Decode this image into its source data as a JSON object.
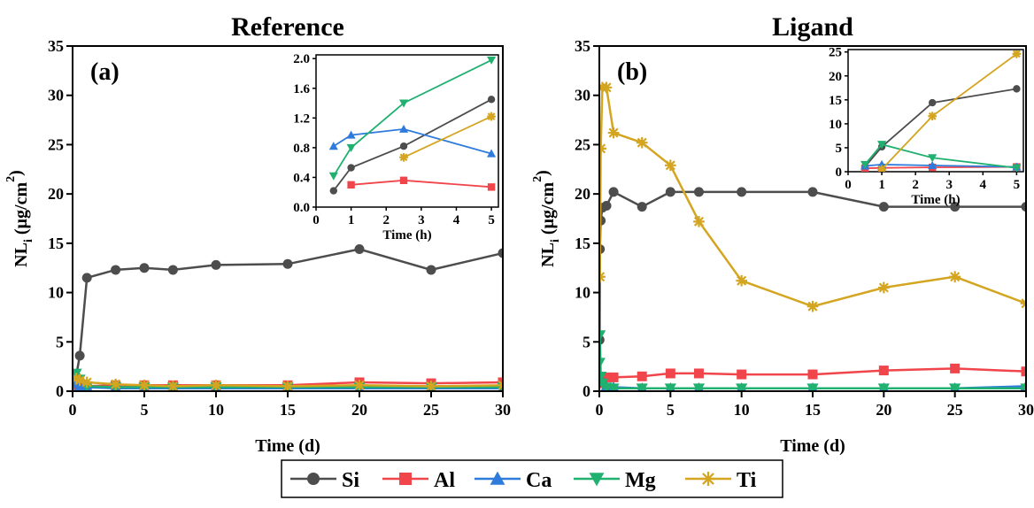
{
  "chart_data": [
    {
      "type": "line",
      "panel": "(a)",
      "title": "Reference",
      "xlabel": "Time (d)",
      "ylabel": "NL",
      "ylabel_sub": "i",
      "ylabel_unit_pre": " (µg/cm",
      "ylabel_unit_sup": "2",
      "ylabel_unit_post": ")",
      "xlim": [
        0,
        30
      ],
      "ylim": [
        0,
        35
      ],
      "xticks": [
        0,
        5,
        10,
        15,
        20,
        25,
        30
      ],
      "yticks": [
        0,
        5,
        10,
        15,
        20,
        25,
        30,
        35
      ],
      "series": [
        {
          "name": "Si",
          "x": [
            0.25,
            0.5,
            1,
            3,
            5,
            7,
            10,
            15,
            20,
            25,
            30
          ],
          "values": [
            1.5,
            3.6,
            11.5,
            12.3,
            12.5,
            12.3,
            12.8,
            12.9,
            14.4,
            12.3,
            14.0
          ]
        },
        {
          "name": "Al",
          "x": [
            0.25,
            0.5,
            1,
            3,
            5,
            7,
            10,
            15,
            20,
            25,
            30
          ],
          "values": [
            0.3,
            0.4,
            0.5,
            0.6,
            0.6,
            0.6,
            0.6,
            0.6,
            0.9,
            0.8,
            0.9
          ]
        },
        {
          "name": "Ca",
          "x": [
            0.25,
            0.5,
            1,
            3,
            5,
            7,
            10,
            15,
            20,
            25,
            30
          ],
          "values": [
            0.8,
            0.5,
            0.4,
            0.3,
            0.3,
            0.3,
            0.3,
            0.3,
            0.3,
            0.3,
            0.3
          ]
        },
        {
          "name": "Mg",
          "x": [
            0.25,
            0.5,
            1,
            3,
            5,
            7,
            10,
            15,
            20,
            25,
            30
          ],
          "values": [
            1.8,
            1.2,
            0.5,
            0.4,
            0.4,
            0.4,
            0.4,
            0.4,
            0.4,
            0.4,
            0.4
          ]
        },
        {
          "name": "Ti",
          "x": [
            0.25,
            0.5,
            1,
            3,
            5,
            7,
            10,
            15,
            20,
            25,
            30
          ],
          "values": [
            1.3,
            1.1,
            0.9,
            0.7,
            0.6,
            0.5,
            0.6,
            0.5,
            0.6,
            0.5,
            0.6
          ]
        }
      ],
      "inset": {
        "xlabel": "Time (h)",
        "xlim": [
          0,
          5.2
        ],
        "ylim": [
          0,
          2.05
        ],
        "xticks": [
          0,
          1,
          2,
          3,
          4,
          5
        ],
        "yticks": [
          0.0,
          0.4,
          0.8,
          1.2,
          1.6,
          2.0
        ],
        "yticklabels": [
          "0.0",
          "0.4",
          "0.8",
          "1.2",
          "1.6",
          "2.0"
        ],
        "series": [
          {
            "name": "Si",
            "x": [
              0.5,
              1,
              2.5,
              5
            ],
            "values": [
              0.22,
              0.53,
              0.82,
              1.45
            ]
          },
          {
            "name": "Al",
            "x": [
              1,
              2.5,
              5
            ],
            "values": [
              0.3,
              0.36,
              0.27
            ]
          },
          {
            "name": "Ca",
            "x": [
              0.5,
              1,
              2.5,
              5
            ],
            "values": [
              0.82,
              0.97,
              1.05,
              0.72
            ]
          },
          {
            "name": "Mg",
            "x": [
              0.5,
              1,
              2.5,
              5
            ],
            "values": [
              0.42,
              0.8,
              1.4,
              1.98
            ]
          },
          {
            "name": "Ti",
            "x": [
              2.5,
              5
            ],
            "values": [
              0.67,
              1.22
            ]
          }
        ]
      }
    },
    {
      "type": "line",
      "panel": "(b)",
      "title": "Ligand",
      "xlabel": "Time (d)",
      "ylabel": "NL",
      "ylabel_sub": "i",
      "ylabel_unit_pre": " (µg/cm",
      "ylabel_unit_sup": "2",
      "ylabel_unit_post": ")",
      "xlim": [
        0,
        30
      ],
      "ylim": [
        0,
        35
      ],
      "xticks": [
        0,
        5,
        10,
        15,
        20,
        25,
        30
      ],
      "yticks": [
        0,
        5,
        10,
        15,
        20,
        25,
        30,
        35
      ],
      "series": [
        {
          "name": "Si",
          "x": [
            0.02,
            0.04,
            0.1,
            0.21,
            0.5,
            1,
            3,
            5,
            7,
            10,
            15,
            20,
            25,
            30
          ],
          "values": [
            5.2,
            14.4,
            17.3,
            18.6,
            18.8,
            20.2,
            18.7,
            20.2,
            20.2,
            20.2,
            20.2,
            18.7,
            18.7,
            18.7
          ]
        },
        {
          "name": "Al",
          "x": [
            0.02,
            0.04,
            0.1,
            0.21,
            0.5,
            1,
            3,
            5,
            7,
            10,
            15,
            20,
            25,
            30
          ],
          "values": [
            1.0,
            0.9,
            0.8,
            0.9,
            1.4,
            1.4,
            1.5,
            1.8,
            1.8,
            1.7,
            1.7,
            2.1,
            2.3,
            2.0
          ]
        },
        {
          "name": "Ca",
          "x": [
            0.02,
            0.04,
            0.1,
            0.21,
            0.5,
            1,
            3,
            5,
            7,
            10,
            15,
            20,
            25,
            30
          ],
          "values": [
            1.2,
            1.5,
            1.3,
            1.0,
            0.5,
            0.4,
            0.3,
            0.3,
            0.3,
            0.3,
            0.3,
            0.3,
            0.3,
            0.5
          ]
        },
        {
          "name": "Mg",
          "x": [
            0.02,
            0.04,
            0.1,
            0.21,
            0.5,
            1,
            3,
            5,
            7,
            10,
            15,
            20,
            25,
            30
          ],
          "values": [
            2.9,
            5.7,
            1.5,
            0.8,
            0.4,
            0.3,
            0.3,
            0.3,
            0.3,
            0.3,
            0.3,
            0.3,
            0.3,
            0.3
          ]
        },
        {
          "name": "Ti",
          "x": [
            0.04,
            0.1,
            0.21,
            0.5,
            1,
            3,
            5,
            7,
            10,
            15,
            20,
            25,
            30
          ],
          "values": [
            11.6,
            24.6,
            30.8,
            30.8,
            26.2,
            25.2,
            22.9,
            17.2,
            11.2,
            8.6,
            10.5,
            11.6,
            8.9
          ]
        }
      ],
      "inset": {
        "xlabel": "Time (h)",
        "xlim": [
          0,
          5.2
        ],
        "ylim": [
          0,
          25.5
        ],
        "xticks": [
          0,
          1,
          2,
          3,
          4,
          5
        ],
        "yticks": [
          0,
          5,
          10,
          15,
          20,
          25
        ],
        "yticklabels": [
          "0",
          "5",
          "10",
          "15",
          "20",
          "25"
        ],
        "series": [
          {
            "name": "Si",
            "x": [
              0.5,
              1,
              2.5,
              5
            ],
            "values": [
              1.0,
              5.2,
              14.4,
              17.3
            ]
          },
          {
            "name": "Al",
            "x": [
              0.5,
              1,
              2.5,
              5
            ],
            "values": [
              0.7,
              0.8,
              0.9,
              1.0
            ]
          },
          {
            "name": "Ca",
            "x": [
              0.5,
              1,
              2.5,
              5
            ],
            "values": [
              1.2,
              1.5,
              1.3,
              1.0
            ]
          },
          {
            "name": "Mg",
            "x": [
              0.5,
              1,
              2.5,
              5
            ],
            "values": [
              1.5,
              5.7,
              2.9,
              0.8
            ]
          },
          {
            "name": "Ti",
            "x": [
              1,
              2.5,
              5
            ],
            "values": [
              0.5,
              11.6,
              24.6
            ]
          }
        ]
      }
    }
  ],
  "legend": {
    "position": "bottom-center",
    "items": [
      {
        "name": "Si",
        "color": "#4d4d4d",
        "marker": "circle"
      },
      {
        "name": "Al",
        "color": "#f0454a",
        "marker": "square"
      },
      {
        "name": "Ca",
        "color": "#2f7bdb",
        "marker": "triangle-up"
      },
      {
        "name": "Mg",
        "color": "#20b070",
        "marker": "triangle-down"
      },
      {
        "name": "Ti",
        "color": "#d4a520",
        "marker": "asterisk"
      }
    ]
  }
}
